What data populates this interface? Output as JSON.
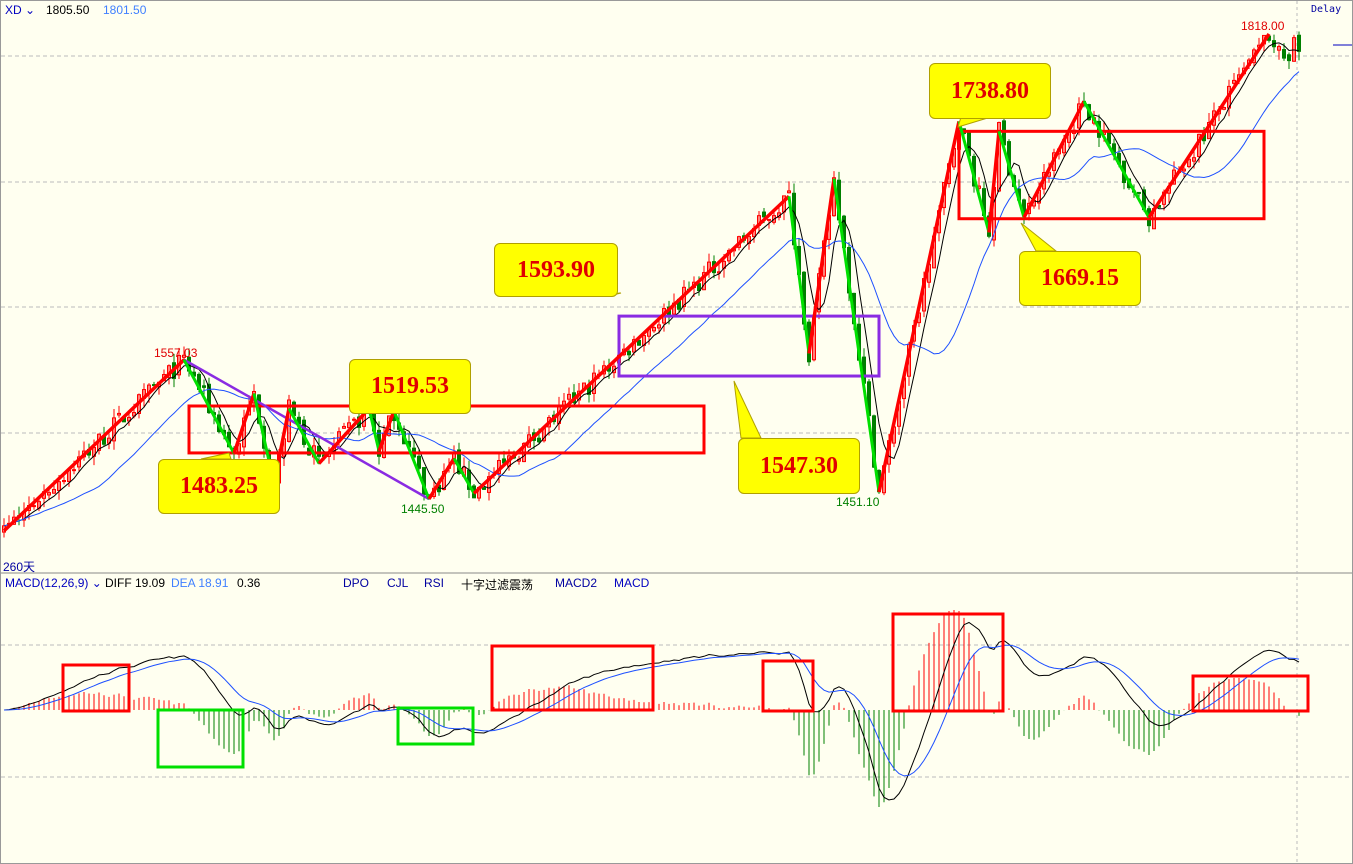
{
  "header": {
    "symbol": "XD",
    "price1": "1805.50",
    "price2": "1801.50",
    "delay": "Delay",
    "period": "260天"
  },
  "macd_header": {
    "name": "MACD(12,26,9)",
    "diff": "DIFF 19.09",
    "dea": "DEA 18.91",
    "macd": "0.36",
    "tabs": [
      "DPO",
      "CJL",
      "RSI",
      "十字过滤震荡",
      "MACD2",
      "MACD"
    ]
  },
  "colors": {
    "background": "#fffff0",
    "up": "#ff0000",
    "down": "#008000",
    "zigzag_up": "#ff0000",
    "zigzag_down": "#00e000",
    "channel": "#8a2be2",
    "callout": "#ffff00",
    "diff": "#000000",
    "dea": "#1e50ff"
  },
  "chart_data": {
    "type": "candlestick",
    "bars": 260,
    "ylim": [
      1410,
      1830
    ],
    "grid": true,
    "price_labels": [
      {
        "text": "1557.03",
        "index": 36,
        "price": 1557.03,
        "color": "red"
      },
      {
        "text": "1445.50",
        "index": 85,
        "price": 1445.5,
        "color": "green"
      },
      {
        "text": "1451.10",
        "index": 175,
        "price": 1451.1,
        "color": "green"
      },
      {
        "text": "1818.00",
        "index": 253,
        "price": 1818.0,
        "color": "red"
      }
    ],
    "callouts": [
      "1593.90",
      "1519.53",
      "1483.25",
      "1547.30",
      "1738.80",
      "1669.15"
    ],
    "zigzag": [
      [
        0,
        1420
      ],
      [
        36,
        1557
      ],
      [
        46,
        1482
      ],
      [
        50,
        1530
      ],
      [
        54,
        1458
      ],
      [
        57,
        1518
      ],
      [
        63,
        1474
      ],
      [
        73,
        1518
      ],
      [
        75,
        1484
      ],
      [
        78,
        1516
      ],
      [
        85,
        1445.5
      ],
      [
        90,
        1478
      ],
      [
        94,
        1450
      ],
      [
        157,
        1688
      ],
      [
        161,
        1562
      ],
      [
        166,
        1702
      ],
      [
        175,
        1451.1
      ],
      [
        191,
        1748
      ],
      [
        197,
        1659
      ],
      [
        199,
        1740
      ],
      [
        204,
        1671
      ],
      [
        216,
        1764
      ],
      [
        229,
        1671
      ],
      [
        253,
        1818
      ]
    ],
    "channel_line": [
      [
        36,
        1557.03
      ],
      [
        85,
        1445.5
      ]
    ],
    "boxes": [
      {
        "color": "red",
        "from": 37,
        "to": 140,
        "low": 1482.4,
        "high": 1520
      },
      {
        "color": "purple",
        "from": 123,
        "to": 175,
        "low": 1544,
        "high": 1592
      },
      {
        "color": "red",
        "from": 191,
        "to": 252,
        "low": 1670,
        "high": 1740
      }
    ]
  }
}
